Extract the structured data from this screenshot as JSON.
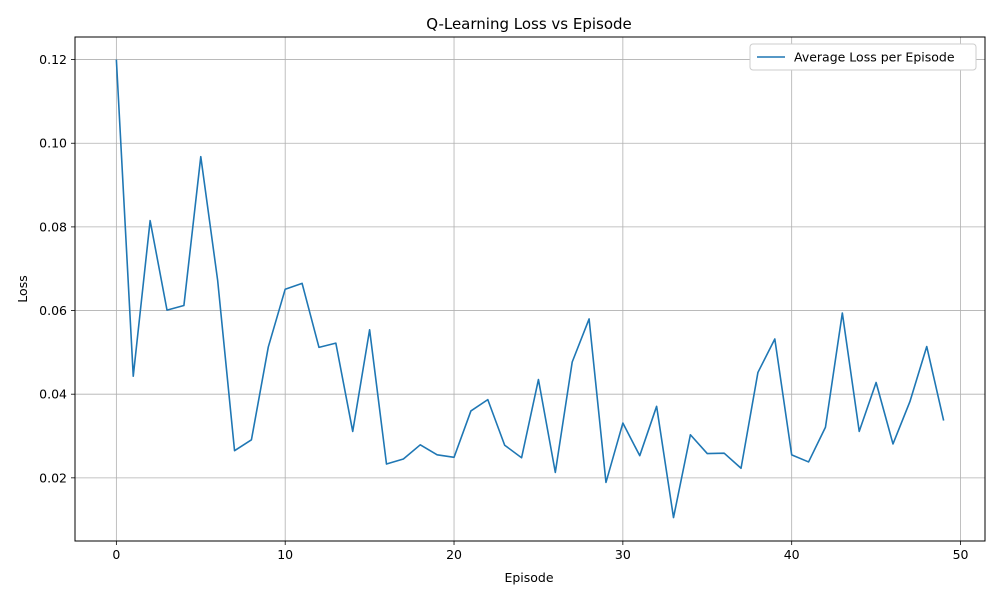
{
  "chart_data": {
    "type": "line",
    "title": "Q-Learning Loss vs Episode",
    "xlabel": "Episode",
    "ylabel": "Loss",
    "xlim": [
      -2.45,
      51.45
    ],
    "ylim": [
      0.0049,
      0.1254
    ],
    "x_ticks": [
      0,
      10,
      20,
      30,
      40,
      50
    ],
    "y_ticks": [
      0.02,
      0.04,
      0.06,
      0.08,
      0.1,
      0.12
    ],
    "y_tick_labels": [
      "0.02",
      "0.04",
      "0.06",
      "0.08",
      "0.10",
      "0.12"
    ],
    "grid": true,
    "legend_position": "top-right",
    "series": [
      {
        "name": "Average Loss per Episode",
        "color": "#1f77b4",
        "x": [
          0,
          1,
          2,
          3,
          4,
          5,
          6,
          7,
          8,
          9,
          10,
          11,
          12,
          13,
          14,
          15,
          16,
          17,
          18,
          19,
          20,
          21,
          22,
          23,
          24,
          25,
          26,
          27,
          28,
          29,
          30,
          31,
          32,
          33,
          34,
          35,
          36,
          37,
          38,
          39,
          40,
          41,
          42,
          43,
          44,
          45,
          46,
          47,
          48,
          49
        ],
        "values": [
          0.12,
          0.0443,
          0.0815,
          0.0601,
          0.0612,
          0.0968,
          0.0672,
          0.0265,
          0.0291,
          0.0513,
          0.0651,
          0.0665,
          0.0512,
          0.0522,
          0.0311,
          0.0554,
          0.0233,
          0.0245,
          0.0279,
          0.0255,
          0.0249,
          0.036,
          0.0387,
          0.0278,
          0.0248,
          0.0435,
          0.0213,
          0.0477,
          0.058,
          0.0189,
          0.0331,
          0.0253,
          0.0371,
          0.0105,
          0.0303,
          0.0258,
          0.0259,
          0.0223,
          0.0452,
          0.0532,
          0.0255,
          0.0238,
          0.0321,
          0.0594,
          0.0311,
          0.0428,
          0.0281,
          0.0382,
          0.0514,
          0.0337
        ]
      }
    ]
  }
}
